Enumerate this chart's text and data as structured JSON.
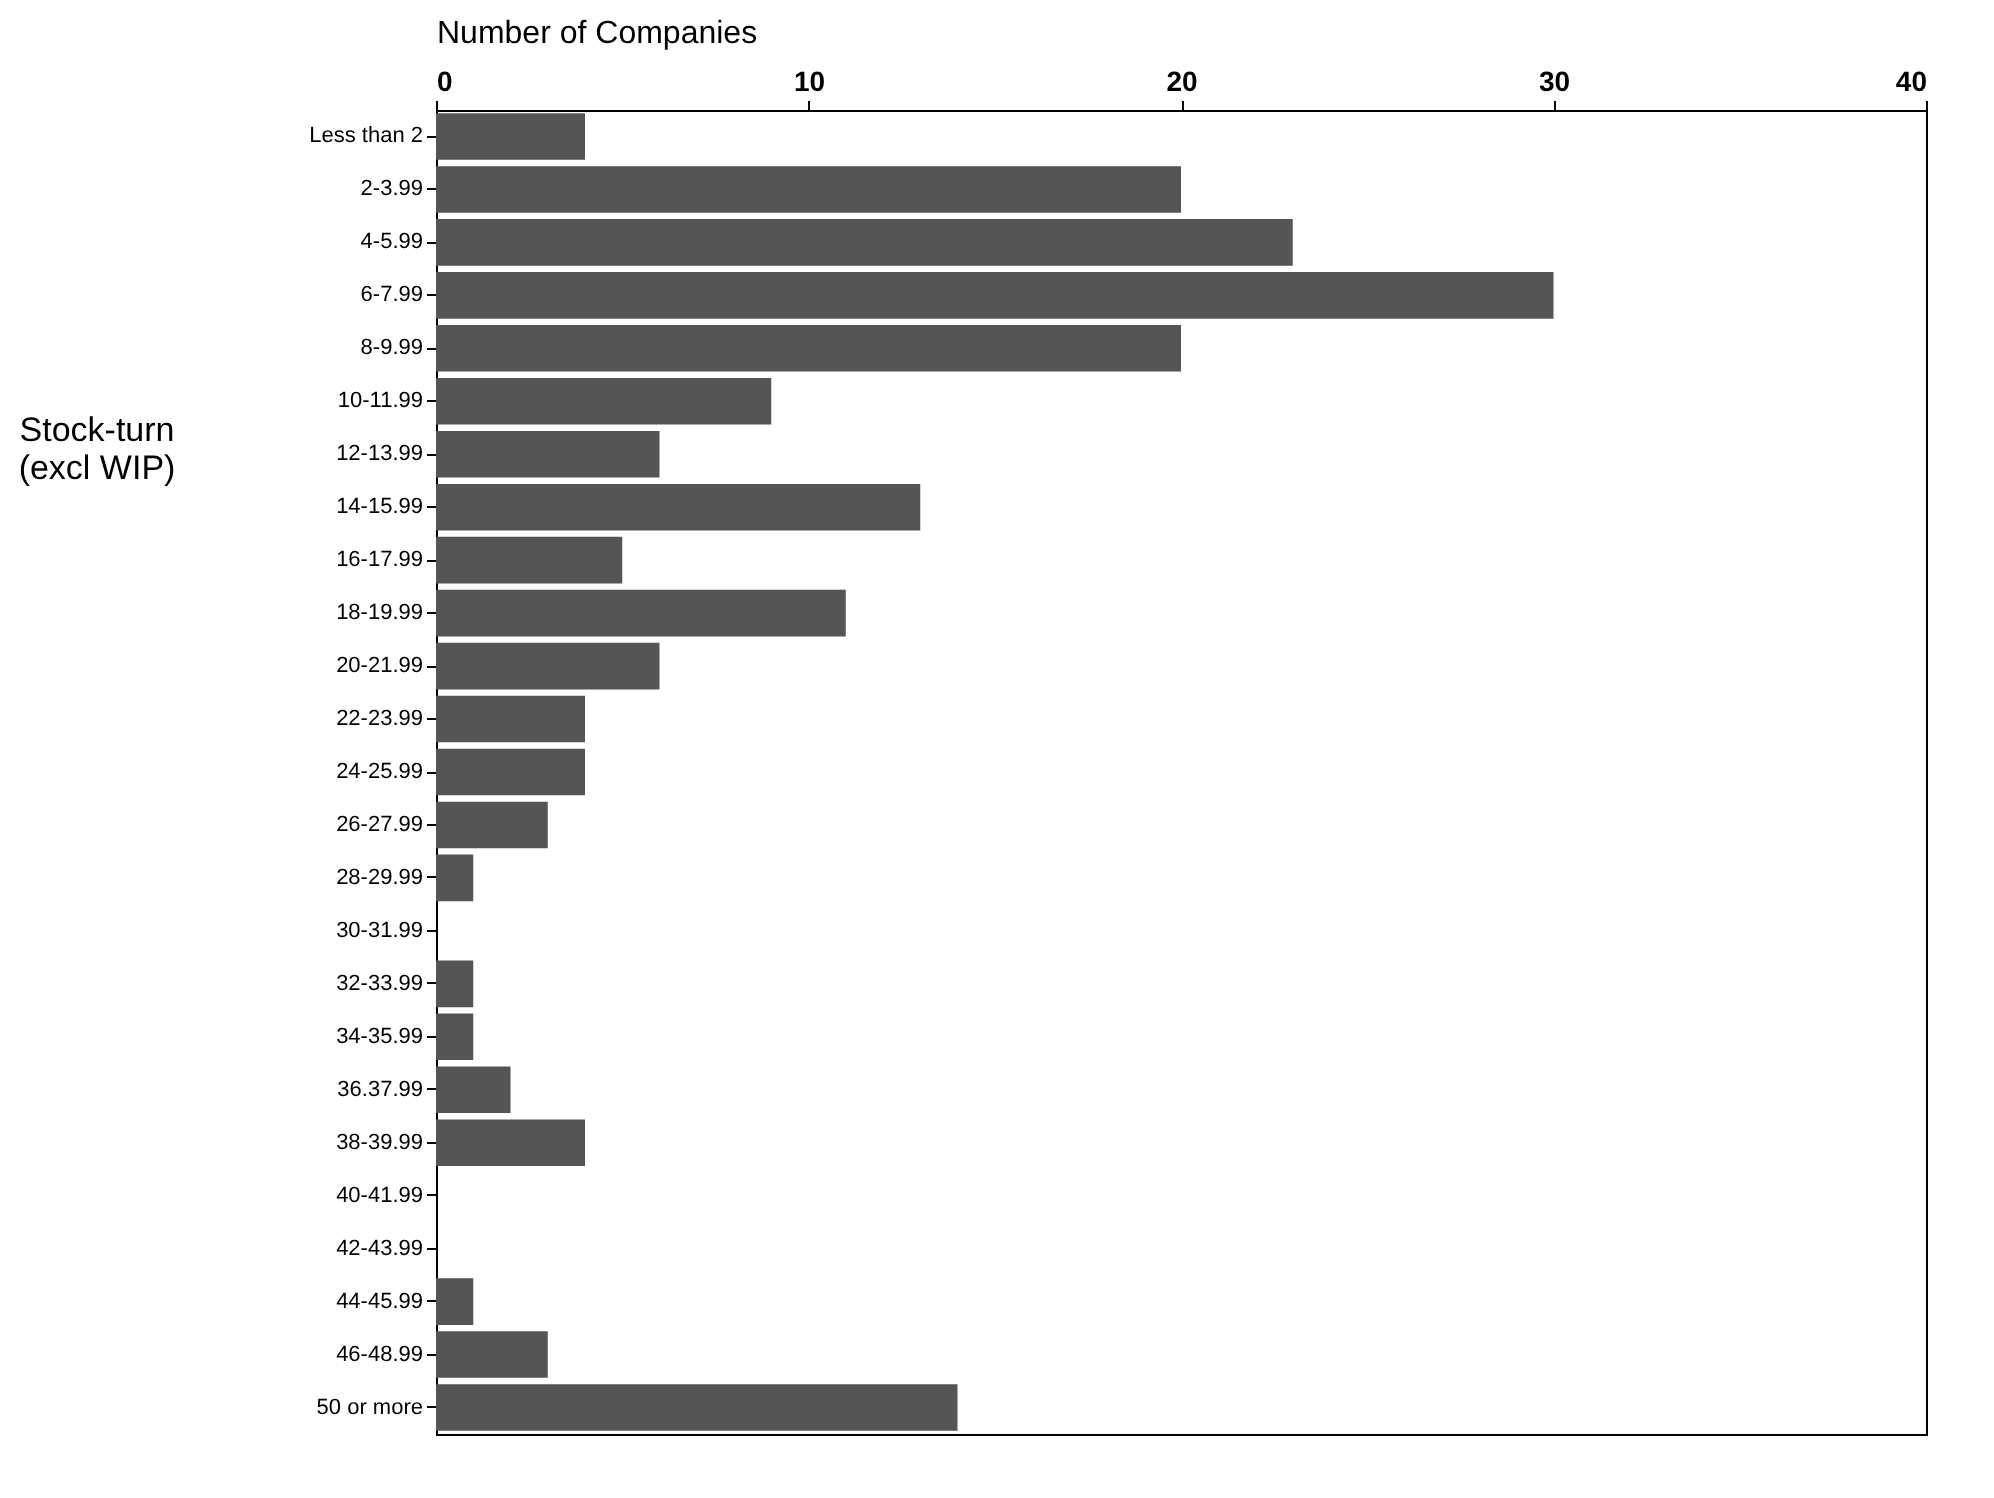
{
  "chart_data": {
    "type": "bar",
    "orientation": "horizontal",
    "xlabel": "Number of Companies",
    "ylabel": "Stock-turn (excl WIP)",
    "categories": [
      "Less than 2",
      "2-3.99",
      "4-5.99",
      "6-7.99",
      "8-9.99",
      "10-11.99",
      "12-13.99",
      "14-15.99",
      "16-17.99",
      "18-19.99",
      "20-21.99",
      "22-23.99",
      "24-25.99",
      "26-27.99",
      "28-29.99",
      "30-31.99",
      "32-33.99",
      "34-35.99",
      "36.37.99",
      "38-39.99",
      "40-41.99",
      "42-43.99",
      "44-45.99",
      "46-48.99",
      "50 or more"
    ],
    "values": [
      4,
      20,
      23,
      30,
      20,
      9,
      6,
      13,
      5,
      11,
      6,
      4,
      4,
      3,
      1,
      0,
      1,
      1,
      2,
      4,
      0,
      0,
      1,
      3,
      14
    ],
    "color": "#555555",
    "xlim": [
      0,
      40
    ],
    "xticks": [
      0,
      10,
      20,
      30,
      40
    ],
    "grid": false
  }
}
